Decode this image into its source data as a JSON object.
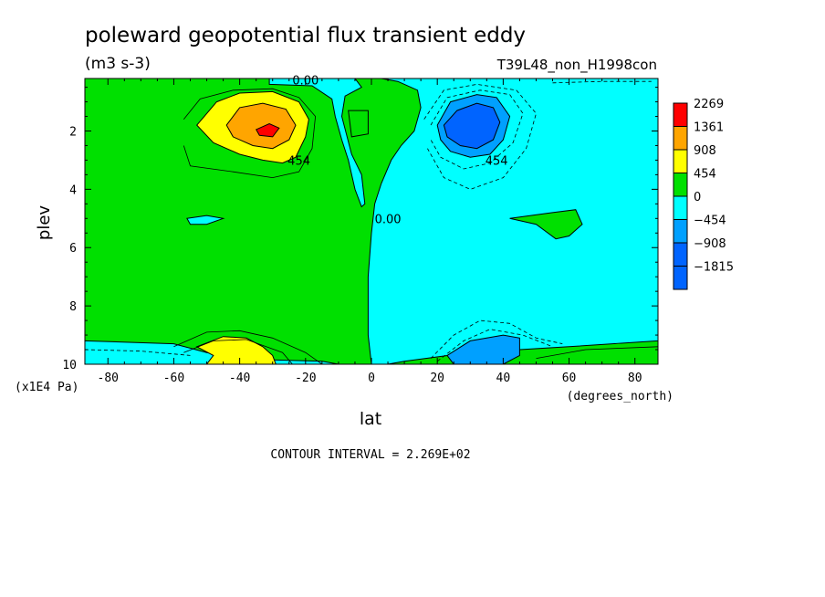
{
  "chart_data": {
    "type": "heatmap",
    "title": "poleward geopotential flux transient eddy",
    "subtitle": "(m3 s-3)",
    "run_label": "T39L48_non_H1998con",
    "xlabel": "lat",
    "ylabel": "plev",
    "x_units": "(degrees_north)",
    "y_units": "(x1E4 Pa)",
    "xlim": [
      -87,
      87
    ],
    "ylim": [
      10,
      0.2
    ],
    "x_ticks": [
      -80,
      -60,
      -40,
      -20,
      0,
      20,
      40,
      60,
      80
    ],
    "y_ticks": [
      2,
      4,
      6,
      8,
      10
    ],
    "contour_interval": "CONTOUR INTERVAL = 2.269E+02",
    "contour_labels": [
      {
        "text": "0.00",
        "x": -20,
        "y": 0.25
      },
      {
        "text": "454",
        "x": -22,
        "y": 3.0
      },
      {
        "text": "0.00",
        "x": 5,
        "y": 5.0
      },
      {
        "text": "454",
        "x": 38,
        "y": 3.0
      }
    ],
    "levels": [
      {
        "label": "2269",
        "color": "#ff0000"
      },
      {
        "label": "1361",
        "color": "#ffa500"
      },
      {
        "label": "908",
        "color": "#ffff00"
      },
      {
        "label": "454",
        "color": "#00e000"
      },
      {
        "label": "0",
        "color": "#00ffff"
      },
      {
        "label": "−454",
        "color": "#00a0ff"
      },
      {
        "label": "−908",
        "color": "#0064ff"
      },
      {
        "label": "−1815",
        "color": "#0064ff"
      }
    ],
    "regions": [
      {
        "fill": "#00e000",
        "outline": false,
        "pts": [
          [
            -87,
            0.2
          ],
          [
            87,
            0.2
          ],
          [
            87,
            10
          ],
          [
            -87,
            10
          ]
        ]
      },
      {
        "fill": "#00ffff",
        "outline": true,
        "pts": [
          [
            3,
            0.2
          ],
          [
            32,
            0.2
          ],
          [
            33,
            0.15
          ],
          [
            87,
            0.2
          ],
          [
            87,
            9.2
          ],
          [
            60,
            9.4
          ],
          [
            30,
            9.6
          ],
          [
            10,
            9.9
          ],
          [
            5,
            10
          ],
          [
            0,
            10
          ],
          [
            -1,
            9
          ],
          [
            -1,
            7
          ],
          [
            0,
            5.5
          ],
          [
            1,
            4.5
          ],
          [
            3,
            3.8
          ],
          [
            6,
            3.0
          ],
          [
            9,
            2.5
          ],
          [
            13,
            2.0
          ],
          [
            15,
            1.2
          ],
          [
            14,
            0.6
          ],
          [
            8,
            0.3
          ]
        ]
      },
      {
        "fill": "#00ffff",
        "outline": true,
        "pts": [
          [
            -31,
            0.2
          ],
          [
            -5,
            0.2
          ],
          [
            -3,
            0.5
          ],
          [
            -8,
            0.8
          ],
          [
            -9,
            1.5
          ],
          [
            -6,
            2.8
          ],
          [
            -3,
            3.5
          ],
          [
            -2,
            4.5
          ],
          [
            -3,
            4.6
          ],
          [
            -5,
            4.0
          ],
          [
            -7,
            3.0
          ],
          [
            -9,
            2.3
          ],
          [
            -11,
            1.5
          ],
          [
            -12,
            0.9
          ],
          [
            -18,
            0.45
          ],
          [
            -31,
            0.4
          ]
        ]
      },
      {
        "fill": "#00e000",
        "outline": true,
        "pts": [
          [
            -7,
            1.3
          ],
          [
            -1,
            1.3
          ],
          [
            -1,
            2.1
          ],
          [
            -6,
            2.2
          ]
        ]
      },
      {
        "fill": "#00e000",
        "outline": true,
        "pts": [
          [
            42,
            5.0
          ],
          [
            55,
            4.8
          ],
          [
            62,
            4.7
          ],
          [
            64,
            5.2
          ],
          [
            60,
            5.6
          ],
          [
            56,
            5.7
          ],
          [
            50,
            5.2
          ]
        ]
      },
      {
        "fill": "#00ffff",
        "outline": true,
        "pts": [
          [
            -56,
            5.0
          ],
          [
            -50,
            4.9
          ],
          [
            -45,
            5.0
          ],
          [
            -50,
            5.2
          ],
          [
            -55,
            5.2
          ]
        ]
      },
      {
        "fill": "#00ffff",
        "outline": true,
        "pts": [
          [
            -87,
            9.2
          ],
          [
            -60,
            9.3
          ],
          [
            -50,
            9.6
          ],
          [
            -40,
            9.8
          ],
          [
            -30,
            9.85
          ],
          [
            -15,
            9.9
          ],
          [
            -10,
            10
          ],
          [
            -87,
            10
          ]
        ]
      },
      {
        "fill": "#00e000",
        "outline": false,
        "pts": [
          [
            60,
            9.5
          ],
          [
            75,
            9.3
          ],
          [
            87,
            9.3
          ],
          [
            87,
            10
          ],
          [
            40,
            10
          ],
          [
            50,
            9.8
          ]
        ]
      },
      {
        "fill": "#ffff00",
        "outline": true,
        "pts": [
          [
            -53,
            1.8
          ],
          [
            -47,
            1.0
          ],
          [
            -40,
            0.7
          ],
          [
            -30,
            0.65
          ],
          [
            -22,
            1.0
          ],
          [
            -19,
            1.6
          ],
          [
            -20,
            2.2
          ],
          [
            -23,
            2.9
          ],
          [
            -27,
            3.1
          ],
          [
            -33,
            3.0
          ],
          [
            -40,
            2.8
          ],
          [
            -48,
            2.4
          ]
        ]
      },
      {
        "fill": "#ffa500",
        "outline": true,
        "pts": [
          [
            -44,
            1.8
          ],
          [
            -40,
            1.2
          ],
          [
            -33,
            1.05
          ],
          [
            -26,
            1.25
          ],
          [
            -23,
            1.8
          ],
          [
            -25,
            2.3
          ],
          [
            -30,
            2.6
          ],
          [
            -36,
            2.5
          ],
          [
            -42,
            2.2
          ]
        ]
      },
      {
        "fill": "#ff0000",
        "outline": true,
        "pts": [
          [
            -35,
            1.95
          ],
          [
            -31,
            1.75
          ],
          [
            -28,
            1.9
          ],
          [
            -30,
            2.2
          ],
          [
            -34,
            2.15
          ]
        ]
      },
      {
        "fill": "#00a0ff",
        "outline": true,
        "pts": [
          [
            20,
            1.8
          ],
          [
            24,
            1.0
          ],
          [
            32,
            0.75
          ],
          [
            38,
            0.85
          ],
          [
            42,
            1.5
          ],
          [
            40,
            2.3
          ],
          [
            36,
            2.8
          ],
          [
            30,
            2.9
          ],
          [
            24,
            2.7
          ],
          [
            21,
            2.3
          ]
        ]
      },
      {
        "fill": "#0064ff",
        "outline": true,
        "pts": [
          [
            22,
            1.8
          ],
          [
            26,
            1.3
          ],
          [
            32,
            1.05
          ],
          [
            37,
            1.2
          ],
          [
            39,
            1.7
          ],
          [
            37,
            2.3
          ],
          [
            32,
            2.6
          ],
          [
            27,
            2.5
          ],
          [
            23,
            2.2
          ]
        ]
      },
      {
        "fill": "#ffff00",
        "outline": true,
        "pts": [
          [
            -53,
            9.4
          ],
          [
            -45,
            9.05
          ],
          [
            -38,
            9.1
          ],
          [
            -33,
            9.4
          ],
          [
            -30,
            9.7
          ],
          [
            -29,
            10
          ],
          [
            -50,
            10
          ],
          [
            -48,
            9.7
          ]
        ]
      },
      {
        "fill": "#00a0ff",
        "outline": true,
        "pts": [
          [
            23,
            9.7
          ],
          [
            30,
            9.2
          ],
          [
            40,
            9.0
          ],
          [
            45,
            9.1
          ],
          [
            45,
            9.7
          ],
          [
            40,
            10
          ],
          [
            25,
            10
          ]
        ]
      }
    ],
    "contour_lines": [
      {
        "dash": false,
        "pts": [
          [
            -57,
            1.6
          ],
          [
            -52,
            0.9
          ],
          [
            -42,
            0.6
          ],
          [
            -30,
            0.55
          ],
          [
            -22,
            0.85
          ],
          [
            -17,
            1.5
          ],
          [
            -18,
            2.6
          ],
          [
            -22,
            3.4
          ],
          [
            -30,
            3.6
          ],
          [
            -42,
            3.4
          ],
          [
            -55,
            3.2
          ],
          [
            -57,
            2.5
          ]
        ]
      },
      {
        "dash": false,
        "pts": [
          [
            -60,
            9.4
          ],
          [
            -50,
            8.9
          ],
          [
            -40,
            8.85
          ],
          [
            -30,
            9.1
          ],
          [
            -20,
            9.6
          ],
          [
            -15,
            10
          ]
        ]
      },
      {
        "dash": false,
        "pts": [
          [
            -57,
            9.6
          ],
          [
            -48,
            9.2
          ],
          [
            -38,
            9.15
          ],
          [
            -27,
            9.6
          ],
          [
            -24,
            10
          ]
        ]
      },
      {
        "dash": false,
        "pts": [
          [
            50,
            9.8
          ],
          [
            65,
            9.5
          ],
          [
            87,
            9.4
          ]
        ]
      },
      {
        "dash": true,
        "pts": [
          [
            16,
            1.6
          ],
          [
            22,
            0.6
          ],
          [
            32,
            0.4
          ],
          [
            44,
            0.6
          ],
          [
            50,
            1.4
          ],
          [
            47,
            2.6
          ],
          [
            40,
            3.6
          ],
          [
            30,
            4.0
          ],
          [
            22,
            3.6
          ],
          [
            17,
            2.6
          ]
        ]
      },
      {
        "dash": true,
        "pts": [
          [
            18,
            1.8
          ],
          [
            23,
            0.85
          ],
          [
            33,
            0.6
          ],
          [
            42,
            0.75
          ],
          [
            46,
            1.4
          ],
          [
            43,
            2.4
          ],
          [
            36,
            3.1
          ],
          [
            28,
            3.3
          ],
          [
            21,
            2.9
          ],
          [
            18,
            2.3
          ]
        ]
      },
      {
        "dash": true,
        "pts": [
          [
            18,
            9.8
          ],
          [
            25,
            9.0
          ],
          [
            33,
            8.5
          ],
          [
            42,
            8.6
          ],
          [
            50,
            9.1
          ],
          [
            58,
            9.3
          ]
        ]
      },
      {
        "dash": true,
        "pts": [
          [
            20,
            9.9
          ],
          [
            28,
            9.2
          ],
          [
            36,
            8.8
          ],
          [
            46,
            9.0
          ],
          [
            55,
            9.4
          ]
        ]
      },
      {
        "dash": true,
        "pts": [
          [
            55,
            0.35
          ],
          [
            70,
            0.3
          ],
          [
            85,
            0.3
          ]
        ]
      },
      {
        "dash": true,
        "pts": [
          [
            -87,
            9.5
          ],
          [
            -70,
            9.55
          ],
          [
            -55,
            9.7
          ]
        ]
      }
    ]
  }
}
